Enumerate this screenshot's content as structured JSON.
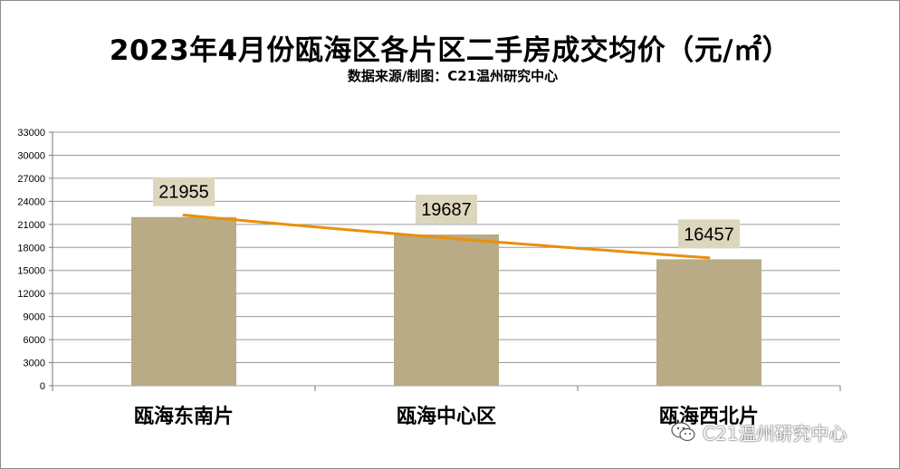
{
  "chart_data": {
    "type": "bar",
    "title": "2023年4月份瓯海区各片区二手房成交均价（元/㎡）",
    "subtitle": "数据来源/制图：C21温州研究中心",
    "categories": [
      "瓯海东南片",
      "瓯海中心区",
      "瓯海西北片"
    ],
    "values": [
      21955,
      19687,
      16457
    ],
    "data_labels": [
      "21955",
      "19687",
      "16457"
    ],
    "yticks": [
      "0",
      "3000",
      "6000",
      "9000",
      "12000",
      "15000",
      "18000",
      "21000",
      "24000",
      "27000",
      "30000",
      "33000"
    ],
    "ylim": [
      0,
      33000
    ],
    "grid": true,
    "trendline": true,
    "colors": {
      "bar": "#b9ab85",
      "trend": "#e8900a",
      "label_bg": "#dcd6bd",
      "grid": "#9a9a9a"
    }
  },
  "watermark": {
    "text": "C21温州研究中心",
    "icon": "wechat-icon"
  }
}
